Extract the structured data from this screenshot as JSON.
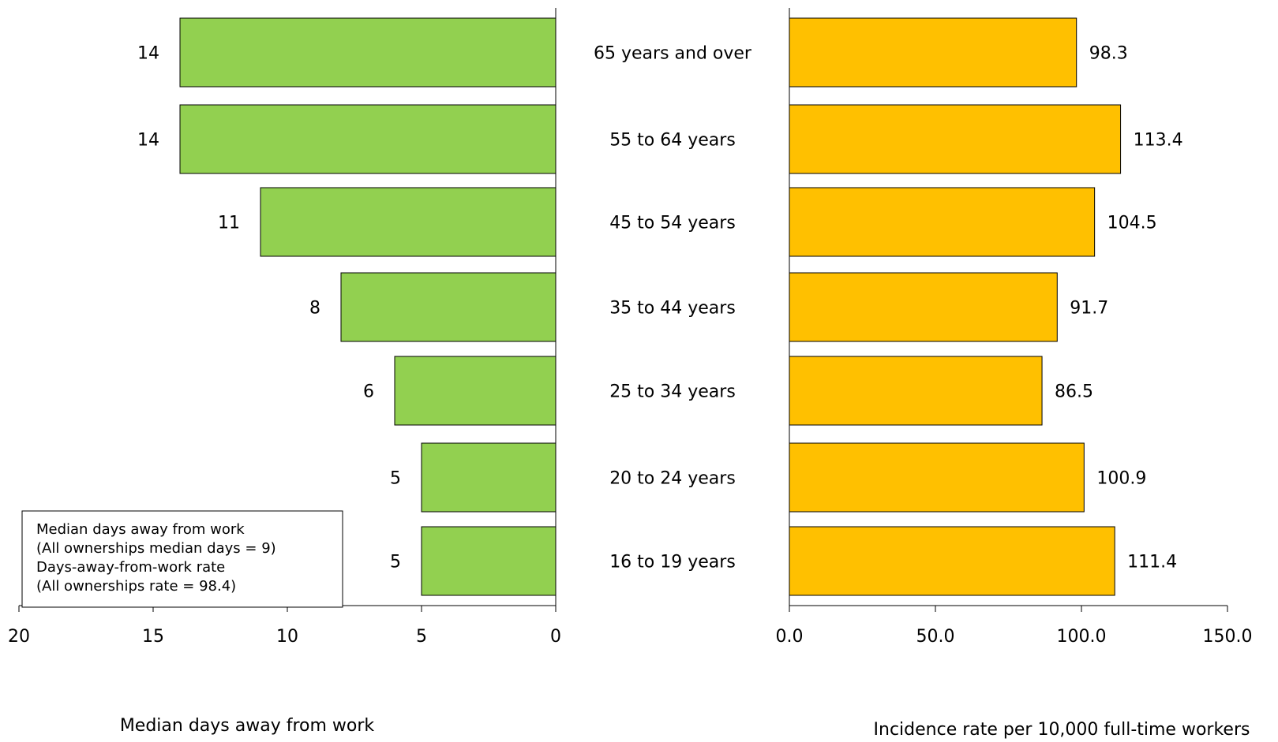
{
  "chart_data": [
    {
      "type": "bar",
      "orientation": "horizontal",
      "direction": "right-to-left",
      "categories": [
        "65 years and over",
        "55 to 64 years",
        "45 to 54 years",
        "35 to 44 years",
        "25 to 34 years",
        "20 to 24 years",
        "16 to 19 years"
      ],
      "values": [
        14,
        14,
        11,
        8,
        6,
        5,
        5
      ],
      "data_labels": [
        "14",
        "14",
        "11",
        "8",
        "6",
        "5",
        "5"
      ],
      "xlabel": "Median days away from work",
      "xlim": [
        0,
        20
      ],
      "ticks": [
        "20",
        "15",
        "10",
        "5",
        "0"
      ],
      "tick_values": [
        20,
        15,
        10,
        5,
        0
      ],
      "color": "#92d050",
      "grid": false
    },
    {
      "type": "bar",
      "orientation": "horizontal",
      "direction": "left-to-right",
      "categories": [
        "65 years and over",
        "55 to 64 years",
        "45 to 54 years",
        "35 to 44 years",
        "25 to 34 years",
        "20 to 24 years",
        "16 to 19 years"
      ],
      "values": [
        98.3,
        113.4,
        104.5,
        91.7,
        86.5,
        100.9,
        111.4
      ],
      "data_labels": [
        "98.3",
        "113.4",
        "104.5",
        "91.7",
        "86.5",
        "100.9",
        "111.4"
      ],
      "xlabel": "Incidence rate per 10,000 full-time workers",
      "xlim": [
        0,
        150
      ],
      "ticks": [
        "0.0",
        "50.0",
        "100.0",
        "150.0"
      ],
      "tick_values": [
        0,
        50,
        100,
        150
      ],
      "color": "#ffc000",
      "grid": false
    }
  ],
  "legend": {
    "placement": "bottom-left",
    "lines": [
      "Median days away from work",
      "(All ownerships median days = 9)",
      "Days-away-from-work rate",
      "(All ownerships rate = 98.4)"
    ]
  }
}
